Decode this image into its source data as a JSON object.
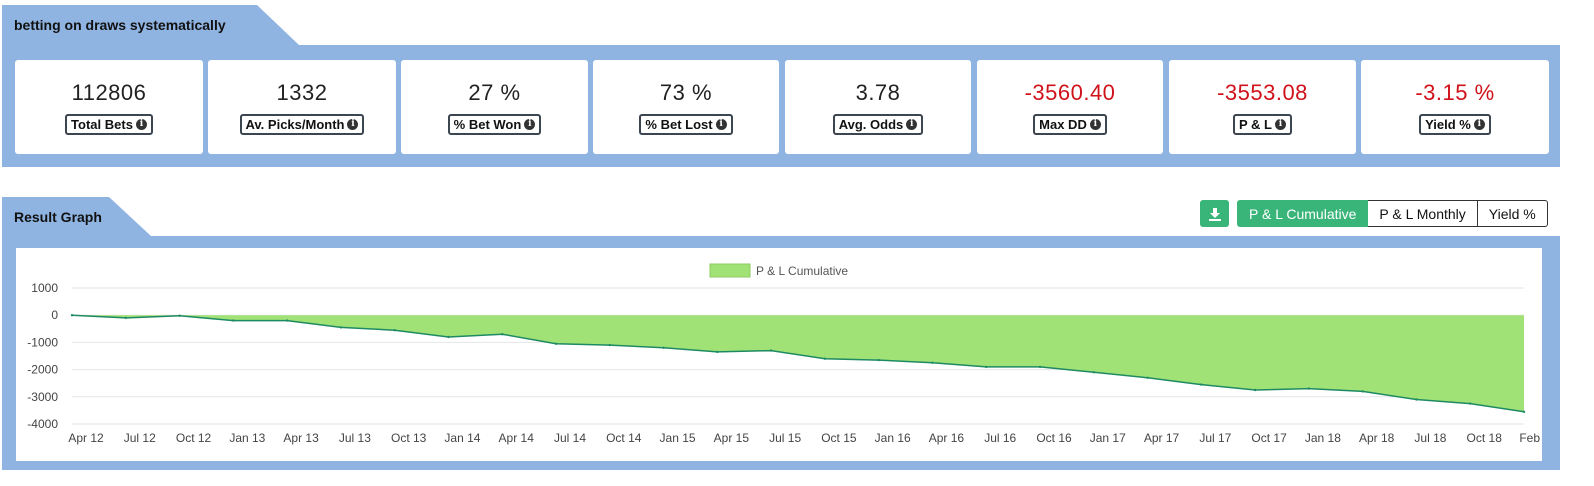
{
  "strategy": {
    "title": "betting on draws systematically"
  },
  "stats": [
    {
      "value": "112806",
      "label": "Total Bets",
      "negative": false
    },
    {
      "value": "1332",
      "label": "Av. Picks/Month",
      "negative": false
    },
    {
      "value": "27 %",
      "label": "% Bet Won",
      "negative": false
    },
    {
      "value": "73 %",
      "label": "% Bet Lost",
      "negative": false
    },
    {
      "value": "3.78",
      "label": "Avg. Odds",
      "negative": false
    },
    {
      "value": "-3560.40",
      "label": "Max DD",
      "negative": true
    },
    {
      "value": "-3553.08",
      "label": "P & L",
      "negative": true
    },
    {
      "value": "-3.15 %",
      "label": "Yield %",
      "negative": true
    }
  ],
  "graph_section": {
    "title": "Result Graph",
    "download_icon": "download-icon",
    "tabs": [
      {
        "label": "P & L Cumulative",
        "active": true
      },
      {
        "label": "P & L Monthly",
        "active": false
      },
      {
        "label": "Yield %",
        "active": false
      }
    ]
  },
  "colors": {
    "panel": "#8fb4e2",
    "accent": "#3ab57a",
    "negative": "#d0121b",
    "area_fill": "#a1e276",
    "area_line": "#1e8a63"
  },
  "chart_data": {
    "type": "area",
    "legend": "P & L Cumulative",
    "legend_position": "top-center",
    "grid": true,
    "ylim": [
      -4000,
      1000
    ],
    "yticks": [
      1000,
      0,
      -1000,
      -2000,
      -3000,
      -4000
    ],
    "ytick_labels": [
      "1000",
      "0",
      "-1000",
      "-2000",
      "-3000",
      "-4000"
    ],
    "xtick_labels": [
      "Apr 12",
      "Jul 12",
      "Oct 12",
      "Jan 13",
      "Apr 13",
      "Jul 13",
      "Oct 13",
      "Jan 14",
      "Apr 14",
      "Jul 14",
      "Oct 14",
      "Jan 15",
      "Apr 15",
      "Jul 15",
      "Oct 15",
      "Jan 16",
      "Apr 16",
      "Jul 16",
      "Oct 16",
      "Jan 17",
      "Apr 17",
      "Jul 17",
      "Oct 17",
      "Jan 18",
      "Apr 18",
      "Jul 18",
      "Oct 18",
      "Feb 19"
    ],
    "series": [
      {
        "name": "P & L Cumulative",
        "x": [
          "Apr 12",
          "Jul 12",
          "Oct 12",
          "Jan 13",
          "Apr 13",
          "Jul 13",
          "Oct 13",
          "Jan 14",
          "Apr 14",
          "Jul 14",
          "Oct 14",
          "Jan 15",
          "Apr 15",
          "Jul 15",
          "Oct 15",
          "Jan 16",
          "Apr 16",
          "Jul 16",
          "Oct 16",
          "Jan 17",
          "Apr 17",
          "Jul 17",
          "Oct 17",
          "Jan 18",
          "Apr 18",
          "Jul 18",
          "Oct 18",
          "Feb 19"
        ],
        "values": [
          0,
          -100,
          -20,
          -200,
          -200,
          -450,
          -550,
          -800,
          -700,
          -1050,
          -1100,
          -1200,
          -1350,
          -1300,
          -1600,
          -1650,
          -1750,
          -1900,
          -1900,
          -2100,
          -2300,
          -2550,
          -2750,
          -2700,
          -2800,
          -3100,
          -3250,
          -3553
        ]
      }
    ]
  }
}
